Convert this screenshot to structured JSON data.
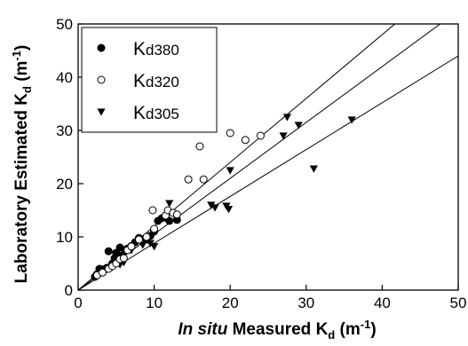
{
  "chart_data": {
    "type": "scatter",
    "title": "",
    "xlabel": {
      "italic": "In situ",
      "main": " Measured K",
      "sub": "d",
      "unit": " (m",
      "sup": "-1",
      "close": ")"
    },
    "ylabel": {
      "main": "Laboratory Estimated K",
      "sub": "d",
      "unit": " (m",
      "sup": "-1",
      "close": ")"
    },
    "xlim": [
      0,
      50
    ],
    "ylim": [
      0,
      50
    ],
    "xticks": [
      "0",
      "10",
      "20",
      "30",
      "40",
      "50"
    ],
    "yticks": [
      "0",
      "10",
      "20",
      "30",
      "40",
      "50"
    ],
    "grid": false,
    "legend_position": "top-left",
    "series": [
      {
        "name": "Kd380",
        "legend_main": "K",
        "legend_sub": "d380",
        "marker": "filled-circle",
        "points": [
          [
            2.2,
            2.5
          ],
          [
            2.5,
            3.0
          ],
          [
            2.8,
            4.0
          ],
          [
            3.2,
            3.5
          ],
          [
            3.8,
            4.2
          ],
          [
            4.0,
            7.3
          ],
          [
            4.5,
            5.0
          ],
          [
            4.8,
            6.0
          ],
          [
            5.0,
            7.0
          ],
          [
            5.5,
            8.0
          ],
          [
            5.8,
            6.5
          ],
          [
            6.2,
            7.5
          ],
          [
            6.5,
            7.8
          ],
          [
            7.0,
            8.3
          ],
          [
            7.5,
            9.0
          ],
          [
            8.0,
            9.8
          ],
          [
            9.0,
            9.5
          ],
          [
            9.5,
            10.2
          ],
          [
            10.0,
            11.0
          ],
          [
            10.5,
            13.0
          ],
          [
            11.0,
            13.5
          ],
          [
            11.5,
            14.0
          ],
          [
            12.0,
            13.0
          ],
          [
            13.0,
            13.2
          ]
        ]
      },
      {
        "name": "Kd320",
        "legend_main": "K",
        "legend_sub": "d320",
        "marker": "open-circle",
        "points": [
          [
            2.5,
            2.8
          ],
          [
            3.2,
            3.3
          ],
          [
            4.0,
            4.0
          ],
          [
            4.5,
            4.5
          ],
          [
            5.0,
            5.0
          ],
          [
            5.5,
            5.8
          ],
          [
            6.0,
            6.0
          ],
          [
            6.5,
            7.5
          ],
          [
            7.0,
            8.2
          ],
          [
            8.0,
            9.5
          ],
          [
            9.0,
            10.0
          ],
          [
            9.8,
            15.0
          ],
          [
            10.0,
            11.5
          ],
          [
            11.5,
            14.0
          ],
          [
            11.8,
            15.0
          ],
          [
            12.5,
            14.5
          ],
          [
            13.0,
            14.2
          ],
          [
            14.5,
            20.8
          ],
          [
            16.0,
            27.0
          ],
          [
            16.5,
            20.8
          ],
          [
            20.0,
            29.5
          ],
          [
            22.0,
            28.2
          ],
          [
            24.0,
            29.0
          ]
        ]
      },
      {
        "name": "Kd305",
        "legend_main": "K",
        "legend_sub": "d305",
        "marker": "filled-triangle-down",
        "points": [
          [
            2.5,
            2.8
          ],
          [
            3.5,
            4.0
          ],
          [
            4.5,
            4.3
          ],
          [
            5.5,
            4.8
          ],
          [
            6.0,
            5.2
          ],
          [
            7.0,
            7.5
          ],
          [
            8.5,
            8.5
          ],
          [
            9.5,
            8.8
          ],
          [
            10.0,
            8.2
          ],
          [
            11.5,
            13.5
          ],
          [
            12.0,
            16.3
          ],
          [
            17.5,
            16.0
          ],
          [
            18.0,
            15.5
          ],
          [
            19.5,
            15.8
          ],
          [
            19.8,
            15.2
          ],
          [
            20.0,
            22.5
          ],
          [
            27.0,
            29.0
          ],
          [
            27.5,
            32.5
          ],
          [
            29.0,
            31.0
          ],
          [
            31.0,
            22.8
          ],
          [
            36.0,
            32.0
          ]
        ]
      }
    ],
    "reference_lines": [
      {
        "slope": 1.2
      },
      {
        "slope": 1.05
      },
      {
        "slope": 0.88
      }
    ]
  }
}
